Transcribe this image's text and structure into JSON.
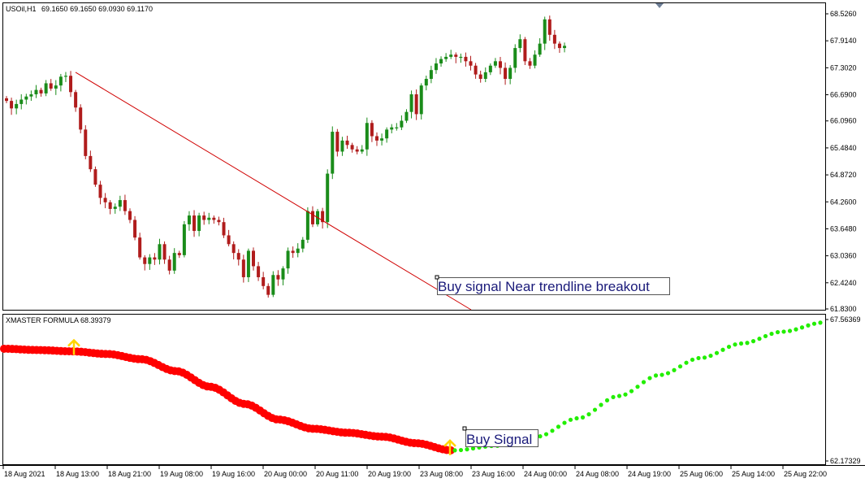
{
  "price_panel": {
    "symbol_header": "USOil,H1",
    "ohlc_header": "69.1650 69.1650 69.0930 69.1170"
  },
  "indicator_panel": {
    "header": "XMASTER FORMULA 68.39379"
  },
  "annotations": {
    "trendline_note": "Buy signal Near trendline breakout",
    "buy_signal_note": "Buy Signal"
  },
  "colors": {
    "bull_candle": "#1a8c1a",
    "bear_candle": "#b01c1c",
    "trendline": "#d00000",
    "indicator_down": "#ff0000",
    "indicator_up": "#22ee00",
    "signal_arrow": "#ffd500",
    "note_text": "#1a1a7a"
  },
  "chart_data": [
    {
      "type": "candlestick",
      "title": "USOil,H1",
      "ylim": [
        61.83,
        68.526
      ],
      "y_ticks": [
        "68.5260",
        "67.9140",
        "67.3020",
        "66.6900",
        "66.0960",
        "65.4840",
        "64.8720",
        "64.2600",
        "63.6480",
        "63.0360",
        "62.4240",
        "61.8300"
      ],
      "x_ticks": [
        "18 Aug 2021",
        "18 Aug 13:00",
        "18 Aug 21:00",
        "19 Aug 08:00",
        "19 Aug 16:00",
        "20 Aug 00:00",
        "20 Aug 11:00",
        "20 Aug 19:00",
        "23 Aug 08:00",
        "23 Aug 16:00",
        "24 Aug 00:00",
        "24 Aug 08:00",
        "24 Aug 19:00",
        "25 Aug 06:00",
        "25 Aug 14:00",
        "25 Aug 22:00"
      ],
      "candles_close_path": [
        66.55,
        66.38,
        66.48,
        66.58,
        66.65,
        66.7,
        66.8,
        66.72,
        66.95,
        66.83,
        66.9,
        67.1,
        67.12,
        66.75,
        66.4,
        65.9,
        65.3,
        65.0,
        64.65,
        64.35,
        64.25,
        64.1,
        64.15,
        64.3,
        64.05,
        63.85,
        63.45,
        63.0,
        62.85,
        63.0,
        62.95,
        63.3,
        62.95,
        62.7,
        63.1,
        63.05,
        63.75,
        63.95,
        63.6,
        63.95,
        63.85,
        63.9,
        63.85,
        63.8,
        63.5,
        63.3,
        63.1,
        62.95,
        62.55,
        63.15,
        62.8,
        62.55,
        62.35,
        62.15,
        62.6,
        62.5,
        62.75,
        63.15,
        63.1,
        63.2,
        63.4,
        64.05,
        63.75,
        64.05,
        63.8,
        64.9,
        65.85,
        65.4,
        65.65,
        65.55,
        65.45,
        65.4,
        65.45,
        66.05,
        65.75,
        65.65,
        65.7,
        65.9,
        65.95,
        65.95,
        66.1,
        66.3,
        66.7,
        66.25,
        66.9,
        67.05,
        67.25,
        67.4,
        67.5,
        67.55,
        67.6,
        67.55,
        67.55,
        67.45,
        67.35,
        67.15,
        67.05,
        67.2,
        67.35,
        67.45,
        67.3,
        67.05,
        67.3,
        67.75,
        67.95,
        67.45,
        67.35,
        67.6,
        67.85,
        68.4,
        68.05,
        67.85,
        67.75,
        67.8
      ],
      "trendline": {
        "start": [
          "18 Aug 13:00",
          67.2
        ],
        "end": [
          "23 Aug 08:00",
          62.05
        ]
      },
      "annotation": "Buy signal Near trendline breakout"
    },
    {
      "type": "line",
      "title": "XMASTER FORMULA",
      "ylim": [
        62.17329,
        67.56369
      ],
      "y_ticks": [
        "67.56369",
        "62.17329"
      ],
      "series": [
        {
          "color": "#ff0000",
          "values": [
            66.45,
            66.4,
            66.35,
            66.25,
            66.05,
            65.6,
            65.0,
            64.35,
            63.75,
            63.4,
            63.25,
            63.1,
            62.85,
            62.58
          ]
        },
        {
          "color": "#22ee00",
          "values": [
            62.58,
            62.75,
            63.1,
            63.8,
            64.65,
            65.45,
            66.1,
            66.65,
            67.1,
            67.45
          ]
        }
      ],
      "signals": [
        {
          "x": "18 Aug 13:00",
          "direction": "up"
        },
        {
          "x": "23 Aug 08:00",
          "direction": "up"
        }
      ],
      "annotation": "Buy Signal"
    }
  ]
}
